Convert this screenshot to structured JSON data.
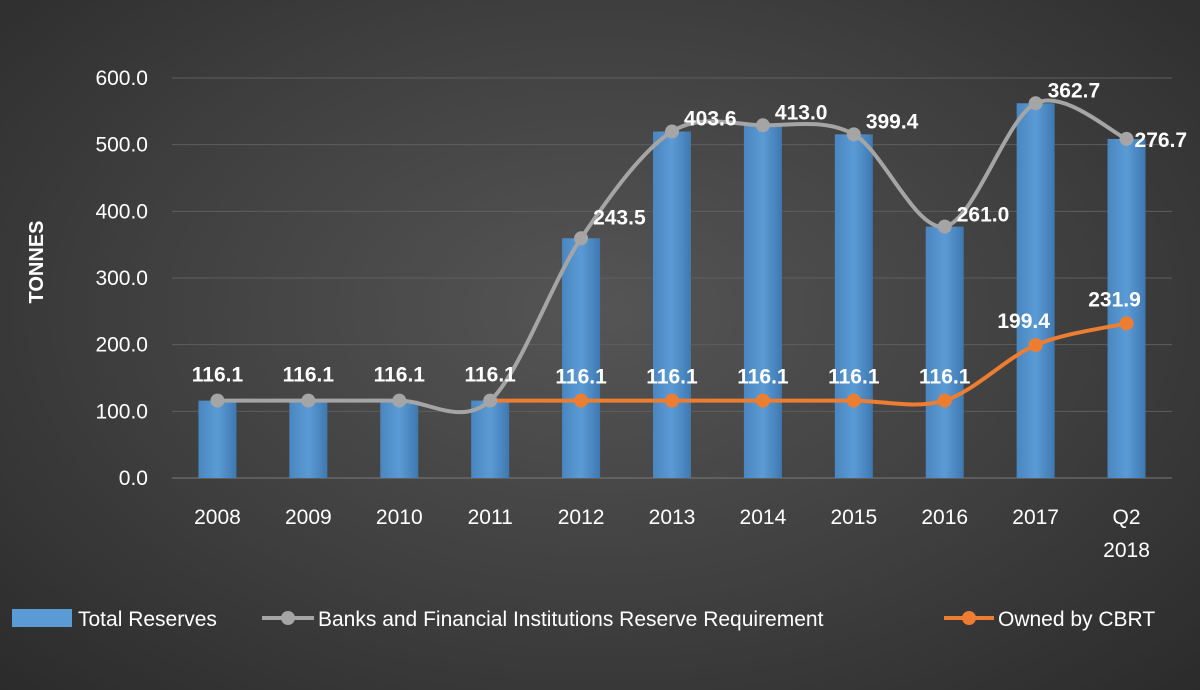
{
  "colors": {
    "background": "#3f3f3f",
    "bar": "#5b9bd5",
    "grey_line": "#a5a5a5",
    "orange_line": "#ed7d31",
    "grid": "#5e5e5e",
    "text": "#ffffff"
  },
  "chart_data": {
    "type": "bar",
    "title": "",
    "xlabel": "",
    "ylabel": "TONNES",
    "ylim": [
      0,
      600
    ],
    "yticks": [
      "0.0",
      "100.0",
      "200.0",
      "300.0",
      "400.0",
      "500.0",
      "600.0"
    ],
    "grid": true,
    "legend_position": "bottom",
    "categories": [
      "2008",
      "2009",
      "2010",
      "2011",
      "2012",
      "2013",
      "2014",
      "2015",
      "2016",
      "2017",
      "Q2 2018"
    ],
    "category_lines": [
      [
        "2008"
      ],
      [
        "2009"
      ],
      [
        "2010"
      ],
      [
        "2011"
      ],
      [
        "2012"
      ],
      [
        "2013"
      ],
      [
        "2014"
      ],
      [
        "2015"
      ],
      [
        "2016"
      ],
      [
        "2017"
      ],
      [
        "Q2",
        "2018"
      ]
    ],
    "series": [
      {
        "name": "Total Reserves",
        "type": "bar",
        "values": [
          116.1,
          116.1,
          116.1,
          116.1,
          359.6,
          519.7,
          529.1,
          515.5,
          377.1,
          562.1,
          508.6
        ]
      },
      {
        "name": "Banks and Financial Institutions Reserve Requirement",
        "type": "line",
        "values": [
          116.1,
          116.1,
          116.1,
          116.1,
          359.6,
          519.7,
          529.1,
          515.5,
          377.1,
          562.1,
          508.6
        ],
        "labels": [
          "116.1",
          "116.1",
          "116.1",
          "116.1",
          "243.5",
          "403.6",
          "413.0",
          "399.4",
          "261.0",
          "362.7",
          "276.7"
        ]
      },
      {
        "name": "Owned by CBRT",
        "type": "line",
        "values": [
          null,
          null,
          null,
          116.1,
          116.1,
          116.1,
          116.1,
          116.1,
          116.1,
          199.4,
          231.9
        ],
        "labels": [
          "",
          "",
          "",
          "",
          "116.1",
          "116.1",
          "116.1",
          "116.1",
          "116.1",
          "199.4",
          "231.9"
        ]
      }
    ]
  }
}
